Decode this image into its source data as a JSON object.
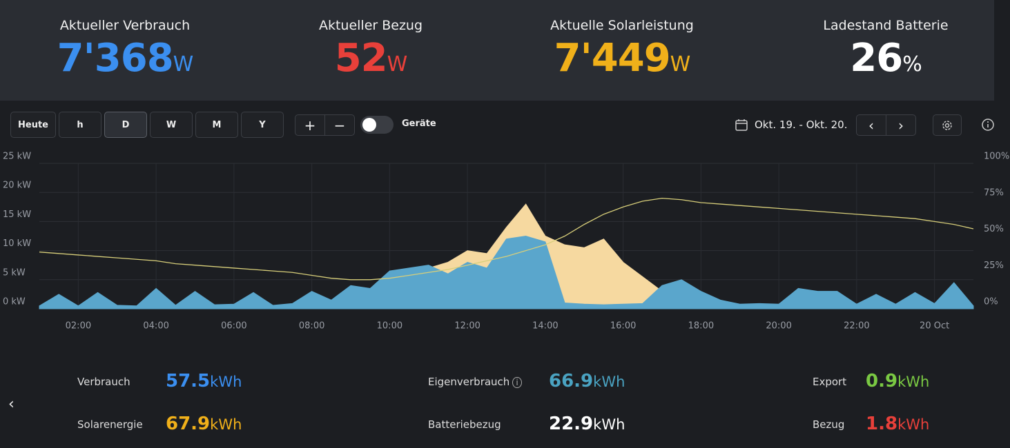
{
  "kpis": [
    {
      "label": "Aktueller Verbrauch",
      "value": "7'368",
      "unit": "W",
      "color": "#3b8ff0"
    },
    {
      "label": "Aktueller Bezug",
      "value": "52",
      "unit": "W",
      "color": "#e8403a"
    },
    {
      "label": "Aktuelle Solarleistung",
      "value": "7'449",
      "unit": "W",
      "color": "#f0b01a"
    },
    {
      "label": "Ladestand Batterie",
      "value": "26",
      "unit": "%",
      "color": "#ffffff"
    }
  ],
  "toolbar": {
    "ranges": [
      "Heute",
      "h",
      "D",
      "W",
      "M",
      "Y"
    ],
    "active": "D",
    "zoom": [
      "+",
      "−"
    ],
    "toggle_label": "Geräte",
    "date_range": "Okt. 19. - Okt. 20.",
    "nav": [
      "‹",
      "›"
    ]
  },
  "chart_data": {
    "type": "area",
    "x": [
      1,
      1.5,
      2,
      2.5,
      3,
      3.5,
      4,
      4.5,
      5,
      5.5,
      6,
      6.5,
      7,
      7.5,
      8,
      8.5,
      9,
      9.5,
      10,
      10.5,
      11,
      11.5,
      12,
      12.5,
      13,
      13.5,
      14,
      14.5,
      15,
      15.5,
      16,
      16.5,
      17,
      17.5,
      18,
      18.5,
      19,
      19.5,
      20,
      20.5,
      21,
      21.5,
      22,
      22.5,
      23,
      23.5,
      24,
      24.5,
      25
    ],
    "xlim": [
      1,
      25
    ],
    "xticks": [
      {
        "value": 2,
        "label": "02:00"
      },
      {
        "value": 4,
        "label": "04:00"
      },
      {
        "value": 6,
        "label": "06:00"
      },
      {
        "value": 8,
        "label": "08:00"
      },
      {
        "value": 10,
        "label": "10:00"
      },
      {
        "value": 12,
        "label": "12:00"
      },
      {
        "value": 14,
        "label": "14:00"
      },
      {
        "value": 16,
        "label": "16:00"
      },
      {
        "value": 18,
        "label": "18:00"
      },
      {
        "value": 20,
        "label": "20:00"
      },
      {
        "value": 22,
        "label": "22:00"
      },
      {
        "value": 24,
        "label": "20 Oct"
      }
    ],
    "ylim": [
      0,
      25
    ],
    "yticks": [
      {
        "value": 0,
        "label": "0 kW"
      },
      {
        "value": 5,
        "label": "5 kW"
      },
      {
        "value": 10,
        "label": "10 kW"
      },
      {
        "value": 15,
        "label": "15 kW"
      },
      {
        "value": 20,
        "label": "20 kW"
      },
      {
        "value": 25,
        "label": "25 kW"
      }
    ],
    "y2lim": [
      0,
      100
    ],
    "y2ticks": [
      {
        "value": 0,
        "label": "0%"
      },
      {
        "value": 25,
        "label": "25%"
      },
      {
        "value": 50,
        "label": "50%"
      },
      {
        "value": 75,
        "label": "75%"
      },
      {
        "value": 100,
        "label": "100%"
      }
    ],
    "grid": true,
    "series": [
      {
        "color": "#f6d9a0",
        "style": "area",
        "values": [
          0,
          0,
          0,
          0,
          0,
          0,
          0,
          0,
          0,
          0,
          0,
          0,
          0,
          0,
          0.2,
          1.5,
          2.5,
          3.5,
          5.0,
          6.0,
          7.0,
          8.0,
          10.0,
          9.5,
          14.0,
          18.0,
          12.5,
          11.0,
          10.5,
          12.0,
          8.0,
          5.5,
          3.0,
          1.5,
          0.3,
          0,
          0,
          0,
          0,
          0,
          0,
          0,
          0,
          0,
          0,
          0,
          0,
          0,
          0
        ]
      },
      {
        "color": "#5aa6cc",
        "style": "area",
        "values": [
          0.5,
          2.5,
          0.5,
          2.8,
          0.6,
          0.5,
          3.5,
          0.6,
          3.0,
          0.7,
          0.8,
          2.8,
          0.6,
          0.9,
          3.0,
          1.5,
          4.0,
          3.5,
          6.5,
          7.0,
          7.5,
          6.0,
          8.0,
          7.0,
          12.0,
          12.5,
          11.5,
          1.0,
          0.8,
          0.7,
          0.8,
          0.9,
          4.0,
          5.0,
          3.0,
          1.5,
          0.8,
          0.9,
          0.8,
          3.5,
          3.0,
          3.0,
          0.8,
          2.5,
          0.8,
          2.8,
          0.9,
          4.5,
          0.5
        ]
      },
      {
        "color": "#d8cf7a",
        "style": "line",
        "axis": "y2",
        "values": [
          39,
          38,
          37,
          36,
          35,
          34,
          33,
          31,
          30,
          29,
          28,
          27,
          26,
          25,
          23,
          21,
          20,
          20,
          21,
          23,
          25,
          27,
          30,
          33,
          36,
          40,
          44,
          50,
          58,
          65,
          70,
          74,
          76,
          75,
          73,
          72,
          71,
          70,
          69,
          68,
          67,
          66,
          65,
          64,
          63,
          62,
          60,
          58,
          55
        ]
      }
    ]
  },
  "stats": [
    {
      "label": "Verbrauch",
      "value": "57.5",
      "unit": "kWh",
      "color": "#3b8ff0"
    },
    {
      "label": "Eigenverbrauch",
      "value": "66.9",
      "unit": "kWh",
      "color": "#4aa3c2",
      "info": true
    },
    {
      "label": "Export",
      "value": "0.9",
      "unit": "kWh",
      "color": "#7ac943"
    },
    {
      "label": "Solarenergie",
      "value": "67.9",
      "unit": "kWh",
      "color": "#f0b01a"
    },
    {
      "label": "Batteriebezug",
      "value": "22.9",
      "unit": "kWh",
      "color": "#ffffff"
    },
    {
      "label": "Bezug",
      "value": "1.8",
      "unit": "kWh",
      "color": "#e8403a"
    }
  ]
}
